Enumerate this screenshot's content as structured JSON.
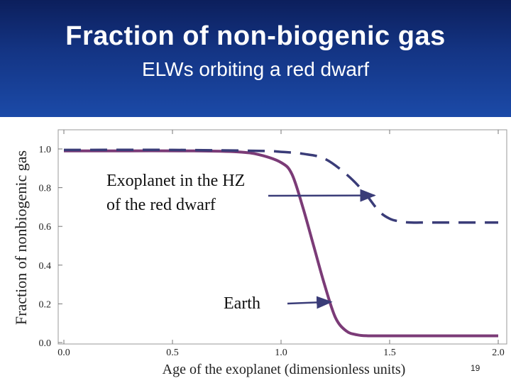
{
  "slide": {
    "title": "Fraction of non-biogenic gas",
    "subtitle": "ELWs orbiting a red dwarf",
    "page_number": "19"
  },
  "colors": {
    "header_top": "#0c1f5c",
    "header_bottom": "#1b4aa8",
    "earth_curve": "#7b3b77",
    "exoplanet_curve": "#3a3c78"
  },
  "chart_data": {
    "type": "line",
    "title": "",
    "xlabel": "Age of the exoplanet (dimensionless units)",
    "ylabel": "Fraction of nonbiogenic gas",
    "xlim": [
      0.0,
      2.0
    ],
    "ylim": [
      0.0,
      1.0
    ],
    "x_ticks": [
      "0.0",
      "0.5",
      "1.0",
      "1.5",
      "2.0"
    ],
    "y_ticks": [
      "0.0",
      "0.2",
      "0.4",
      "0.6",
      "0.8",
      "1.0"
    ],
    "grid": false,
    "series": [
      {
        "name": "Earth",
        "style": "solid",
        "color": "#7b3b77",
        "x": [
          0.0,
          0.3,
          0.6,
          0.8,
          0.9,
          1.0,
          1.05,
          1.1,
          1.15,
          1.2,
          1.25,
          1.3,
          1.35,
          1.4,
          1.5,
          1.7,
          2.0
        ],
        "y": [
          0.99,
          0.99,
          0.99,
          0.985,
          0.97,
          0.93,
          0.87,
          0.7,
          0.5,
          0.3,
          0.13,
          0.06,
          0.04,
          0.035,
          0.035,
          0.035,
          0.035
        ]
      },
      {
        "name": "Exoplanet in the HZ of the red dwarf",
        "style": "dashed",
        "color": "#3a3c78",
        "x": [
          0.0,
          0.5,
          0.9,
          1.0,
          1.1,
          1.2,
          1.3,
          1.38,
          1.45,
          1.5,
          1.55,
          1.6,
          1.7,
          2.0
        ],
        "y": [
          0.995,
          0.995,
          0.99,
          0.985,
          0.975,
          0.95,
          0.87,
          0.78,
          0.68,
          0.64,
          0.625,
          0.62,
          0.62,
          0.62
        ]
      }
    ],
    "annotations": [
      {
        "text_lines": [
          "Exoplanet in the HZ",
          "of the red dwarf"
        ],
        "points_to": "Exoplanet in the HZ of the red dwarf",
        "arrow_target": {
          "x": 1.43,
          "y": 0.76
        }
      },
      {
        "text_lines": [
          "Earth"
        ],
        "points_to": "Earth",
        "arrow_target": {
          "x": 1.23,
          "y": 0.21
        }
      }
    ]
  }
}
